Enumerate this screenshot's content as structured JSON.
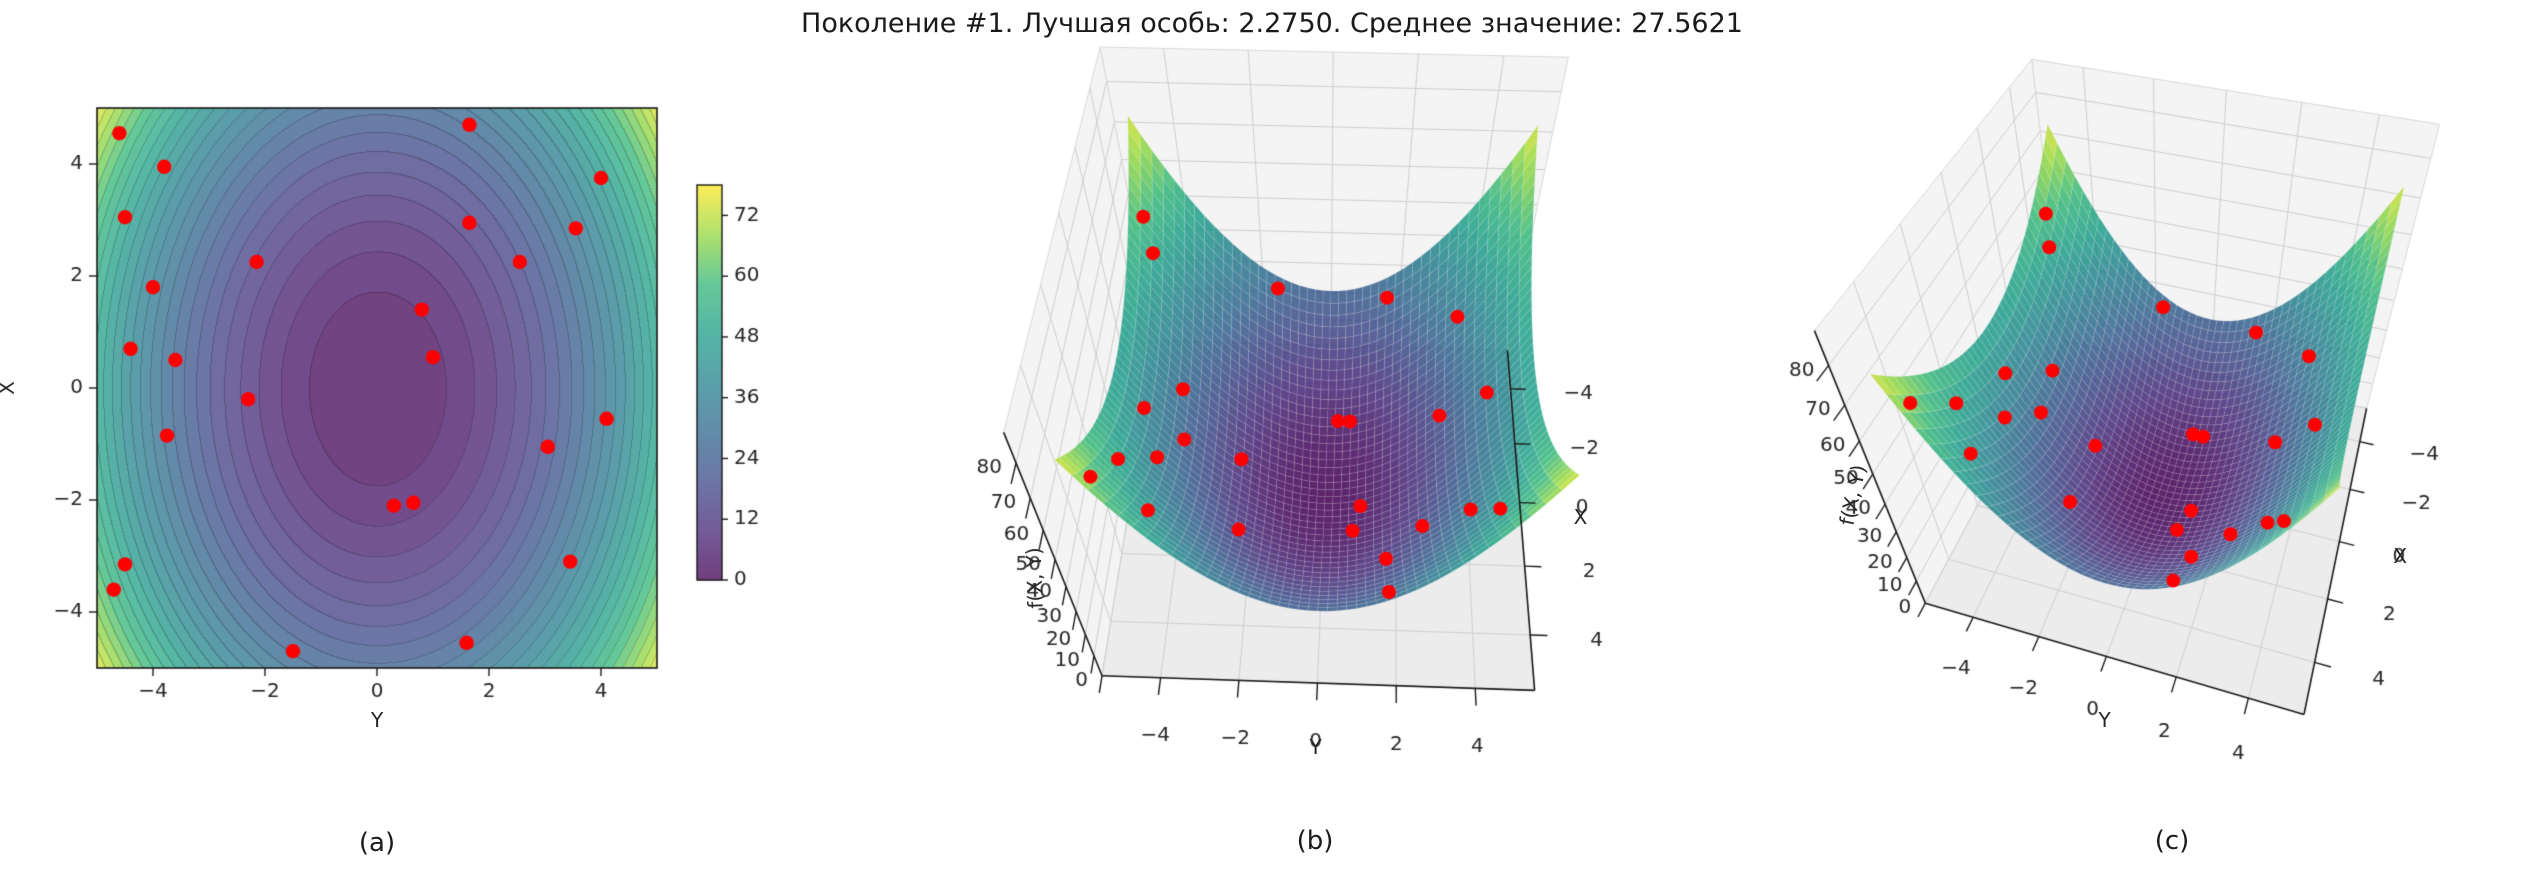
{
  "title": "Поколение #1. Лучшая особь: 2.2750. Среднее значение: 27.5621",
  "background": "#ffffff",
  "panels": [
    {
      "caption": "(a)",
      "xlabel": "Y",
      "ylabel": "X"
    },
    {
      "caption": "(b)",
      "xlabel": "Y",
      "ylabel": "X",
      "zlabel": "f(X, Y)"
    },
    {
      "caption": "(c)",
      "xlabel": "Y",
      "ylabel": "X",
      "zlabel": "f(X, Y)"
    }
  ],
  "population": {
    "color": "#ff0000",
    "points_YX": [
      [
        -4.6,
        4.55
      ],
      [
        -3.8,
        3.95
      ],
      [
        -4.5,
        3.05
      ],
      [
        1.65,
        4.7
      ],
      [
        4.0,
        3.75
      ],
      [
        1.65,
        2.95
      ],
      [
        3.55,
        2.85
      ],
      [
        2.55,
        2.25
      ],
      [
        -2.15,
        2.25
      ],
      [
        -4.0,
        1.8
      ],
      [
        0.8,
        1.4
      ],
      [
        -4.4,
        0.7
      ],
      [
        -3.6,
        0.5
      ],
      [
        1.0,
        0.55
      ],
      [
        -2.3,
        -0.2
      ],
      [
        4.1,
        -0.55
      ],
      [
        -3.75,
        -0.85
      ],
      [
        3.05,
        -1.05
      ],
      [
        0.3,
        -2.1
      ],
      [
        0.65,
        -2.05
      ],
      [
        3.45,
        -3.1
      ],
      [
        -4.5,
        -3.15
      ],
      [
        -4.7,
        -3.6
      ],
      [
        1.6,
        -4.55
      ],
      [
        -1.5,
        -4.7
      ]
    ]
  },
  "chart_data": [
    {
      "type": "heatmap",
      "subtype": "filled-contour",
      "panel": "a",
      "xlabel": "Y",
      "ylabel": "X",
      "xlim": [
        -5,
        5
      ],
      "ylim": [
        -5,
        5
      ],
      "xticks": [
        -4,
        -2,
        0,
        2,
        4
      ],
      "yticks": [
        -4,
        -2,
        0,
        2,
        4
      ],
      "surface_function": "f(X,Y) = X^2 + 2*Y^2",
      "levels": {
        "min": 0,
        "max": 78,
        "step": 3
      },
      "colormap": "viridis",
      "colorbar": {
        "ticks": [
          0,
          12,
          24,
          36,
          48,
          60,
          72
        ],
        "vmin": 0,
        "vmax": 78
      },
      "scatter_series": "population"
    },
    {
      "type": "area",
      "subtype": "surface3d",
      "panel": "b",
      "xlabel": "Y",
      "ylabel": "X",
      "zlabel": "f(X, Y)",
      "xlim": [
        -5.5,
        5.5
      ],
      "ylim": [
        -5.5,
        5.5
      ],
      "zlim": [
        0,
        88
      ],
      "xticks": [
        -4,
        -2,
        0,
        2,
        4
      ],
      "yticks": [
        -4,
        -2,
        0,
        2,
        4
      ],
      "zticks": [
        0,
        10,
        20,
        30,
        40,
        50,
        60,
        70,
        80
      ],
      "surface_function": "f(X,Y) = X^2 + 2*Y^2",
      "colormap": "viridis",
      "view": {
        "elev": 53,
        "azim": -88
      },
      "scatter_series": "population"
    },
    {
      "type": "area",
      "subtype": "surface3d",
      "panel": "c",
      "xlabel": "Y",
      "ylabel": "X",
      "zlabel": "f(X, Y)",
      "xlim": [
        -5.5,
        5.5
      ],
      "ylim": [
        -5.5,
        5.5
      ],
      "zlim": [
        0,
        88
      ],
      "xticks": [
        -4,
        -2,
        0,
        2,
        4
      ],
      "yticks": [
        -4,
        -2,
        0,
        2,
        4
      ],
      "zticks": [
        0,
        10,
        20,
        30,
        40,
        50,
        60,
        70,
        80
      ],
      "surface_function": "f(X,Y) = X^2 + 2*Y^2",
      "colormap": "viridis",
      "view": {
        "elev": 48,
        "azim": -73
      },
      "scatter_series": "population"
    }
  ]
}
